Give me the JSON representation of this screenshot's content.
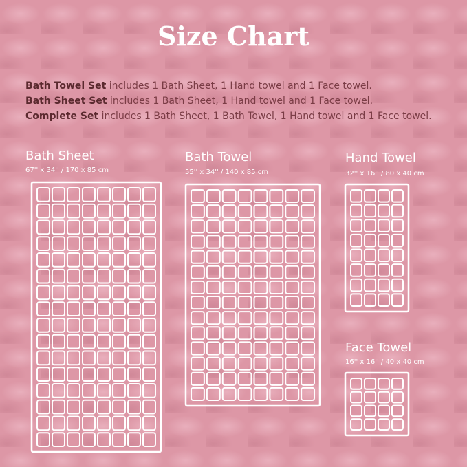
{
  "header": {
    "title": "Size Chart"
  },
  "sets": [
    {
      "name": "Bath Towel Set",
      "text": " includes 1 Bath Sheet, 1 Hand towel and 1 Face towel."
    },
    {
      "name": "Bath Sheet Set",
      "text": " includes 1 Bath Sheet, 1 Hand towel and 1 Face towel."
    },
    {
      "name": "Complete Set",
      "text": " includes 1 Bath Sheet, 1 Bath Towel, 1 Hand towel and 1 Face towel."
    }
  ],
  "towels": [
    {
      "name": "Bath Sheet",
      "size": "67'' x 34'' / 170 x 85 cm"
    },
    {
      "name": "Bath Towel",
      "size": "55'' x 34'' / 140 x 85 cm"
    },
    {
      "name": "Hand Towel",
      "size": "32'' x 16'' / 80 x 40 cm"
    },
    {
      "name": "Face Towel",
      "size": "16'' x 16'' / 40 x 40 cm"
    }
  ]
}
